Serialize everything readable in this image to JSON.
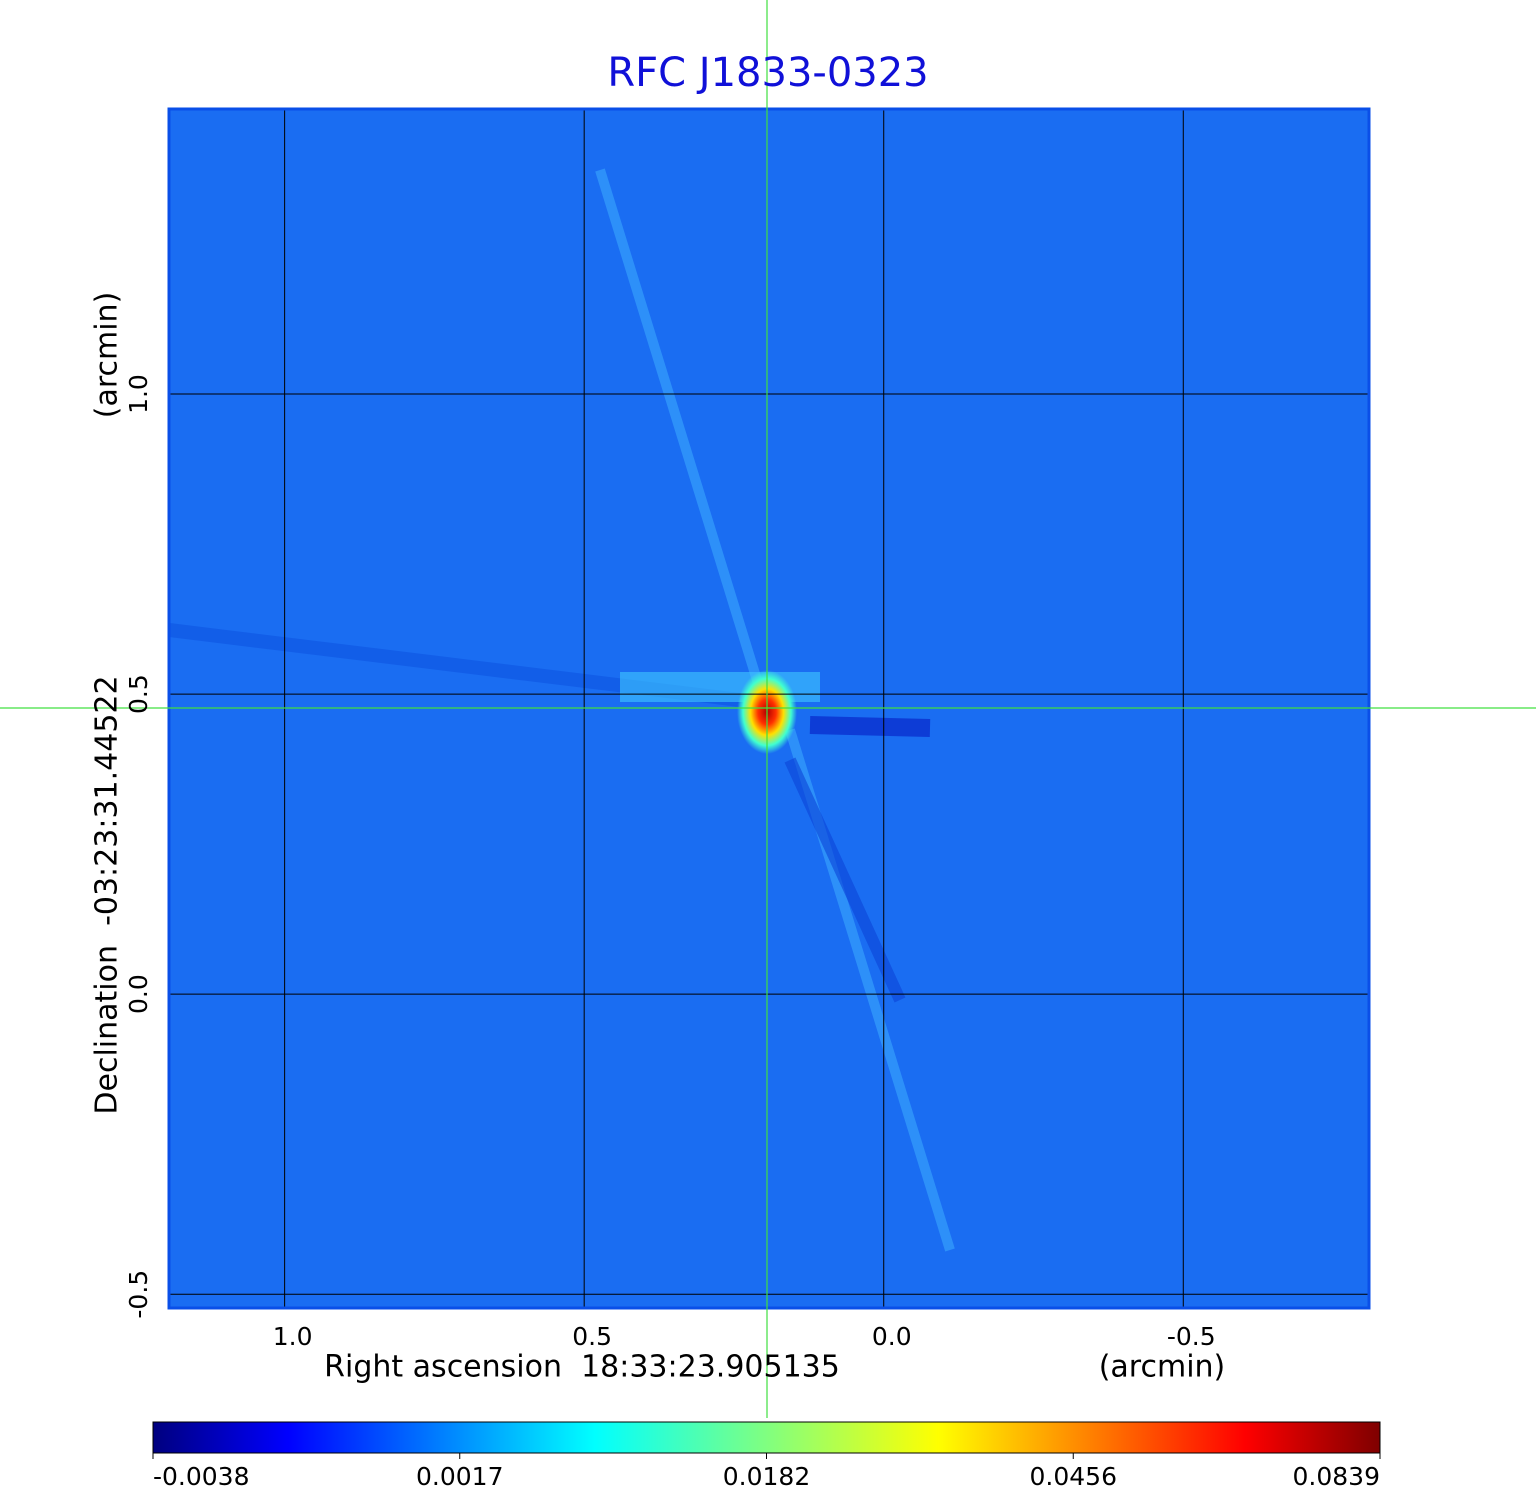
{
  "chart_data": {
    "type": "image",
    "title": "RFC J1833-0323",
    "xlabel": "Right ascension  18:33:23.905135",
    "xunit": "(arcmin)",
    "ylabel": "Declination  -03:23:31.44522",
    "yunit": "(arcmin)",
    "xlim": [
      1.193,
      -0.81
    ],
    "ylim": [
      -0.523,
      1.475
    ],
    "xticks": [
      {
        "value": 1,
        "label": "1.0"
      },
      0.5,
      {
        "value": 0,
        "label": "0.0"
      },
      -0.5
    ],
    "yticks": [
      -0.5,
      {
        "value": 0,
        "label": "0.0"
      },
      0.5,
      {
        "value": 1,
        "label": "1.0"
      }
    ],
    "grid": true,
    "colormap": "jet",
    "colorbar_ticks": [
      -0.0038,
      0.0017,
      0.0182,
      0.0456,
      0.0839
    ]
  }
}
